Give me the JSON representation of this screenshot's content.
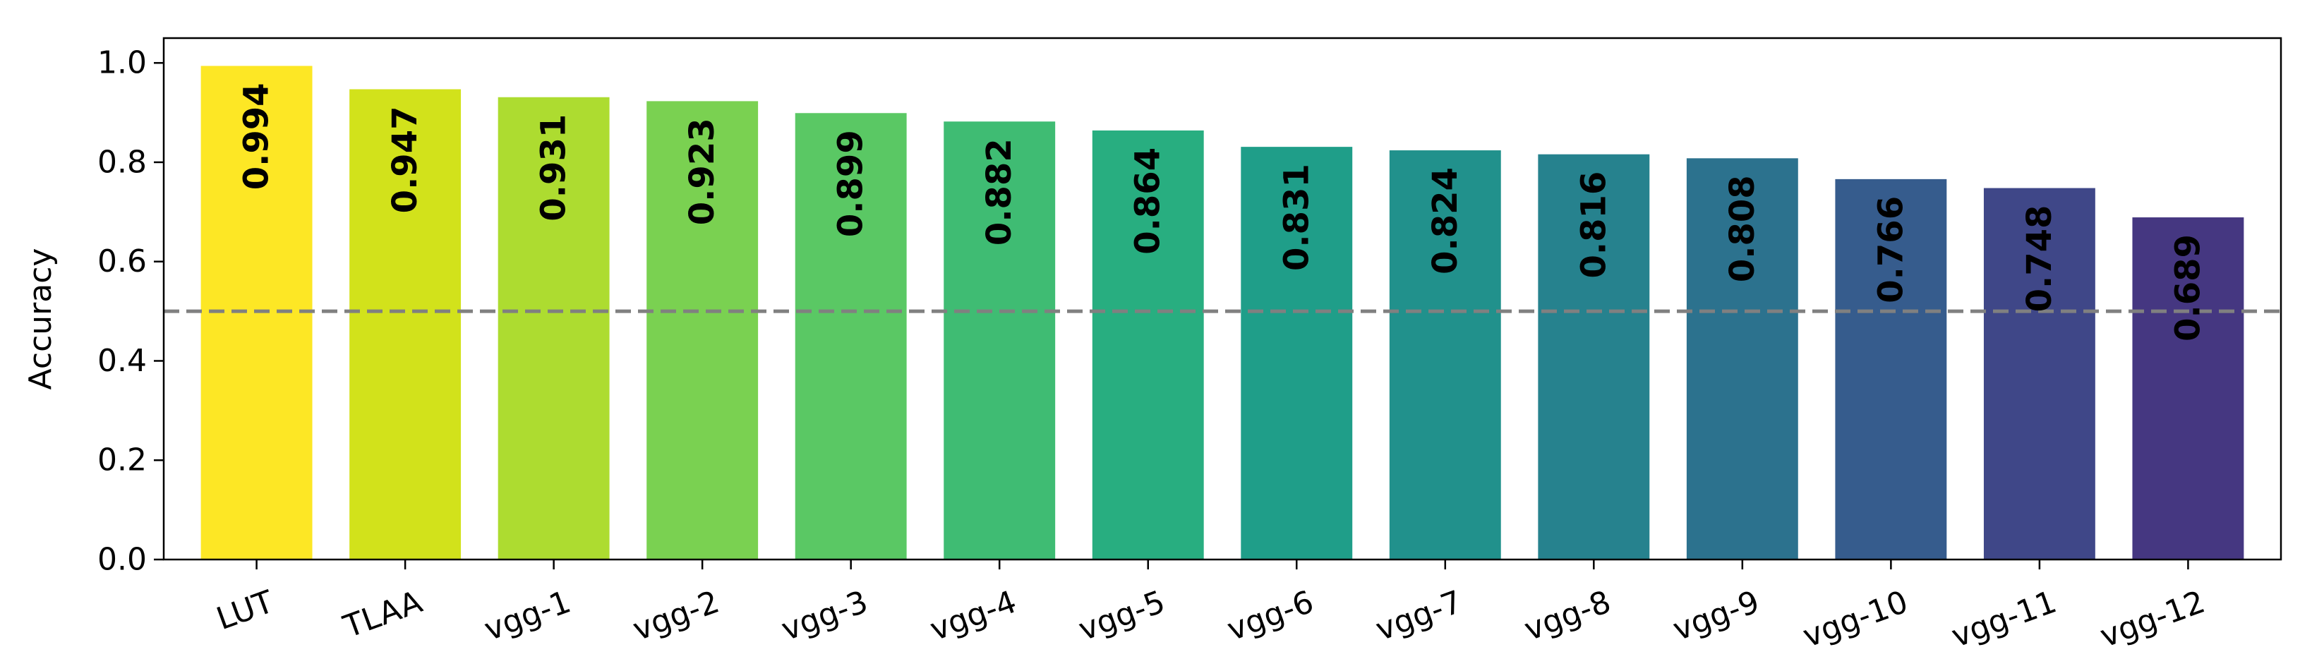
{
  "chart_data": {
    "type": "bar",
    "categories": [
      "LUT",
      "TLAA",
      "vgg-1",
      "vgg-2",
      "vgg-3",
      "vgg-4",
      "vgg-5",
      "vgg-6",
      "vgg-7",
      "vgg-8",
      "vgg-9",
      "vgg-10",
      "vgg-11",
      "vgg-12"
    ],
    "values": [
      0.994,
      0.947,
      0.931,
      0.923,
      0.899,
      0.882,
      0.864,
      0.831,
      0.824,
      0.816,
      0.808,
      0.766,
      0.748,
      0.689
    ],
    "value_labels": [
      "0.994",
      "0.947",
      "0.931",
      "0.923",
      "0.899",
      "0.882",
      "0.864",
      "0.831",
      "0.824",
      "0.816",
      "0.808",
      "0.766",
      "0.748",
      "0.689"
    ],
    "colors": [
      "#fde725",
      "#d2e21b",
      "#addc30",
      "#7ad151",
      "#5ac864",
      "#3fbc73",
      "#28ae80",
      "#1f9e89",
      "#21918c",
      "#26828e",
      "#2c728e",
      "#365c8d",
      "#3f4788",
      "#453781"
    ],
    "xlabel": "",
    "ylabel": "Accuracy",
    "ylim": [
      0.0,
      1.05
    ],
    "yticks": [
      0.0,
      0.2,
      0.4,
      0.6,
      0.8,
      1.0
    ],
    "ytick_labels": [
      "0.0",
      "0.2",
      "0.4",
      "0.6",
      "0.8",
      "1.0"
    ],
    "reference_line": {
      "y": 0.5,
      "style": "dashed",
      "color": "#808080"
    },
    "xtick_rotation": -20,
    "grid": false,
    "legend": "none"
  }
}
